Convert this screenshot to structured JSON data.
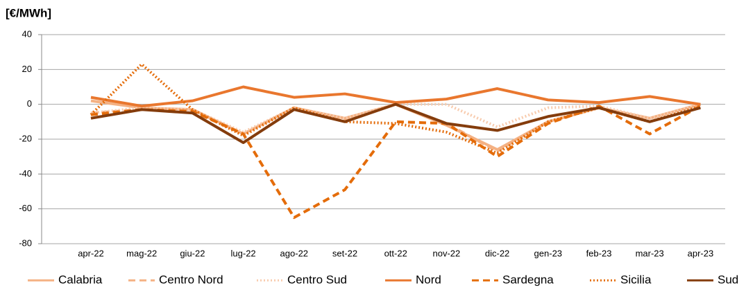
{
  "chart_data": {
    "type": "line",
    "title": "[€/MWh]",
    "categories": [
      "apr-22",
      "mag-22",
      "giu-22",
      "lug-22",
      "ago-22",
      "set-22",
      "ott-22",
      "nov-22",
      "dic-22",
      "gen-23",
      "feb-23",
      "mar-23",
      "apr-23"
    ],
    "ylim": [
      -80,
      40
    ],
    "yticks": [
      -80,
      -60,
      -40,
      -20,
      0,
      20,
      40
    ],
    "grid": true,
    "series": [
      {
        "name": "Calabria",
        "color": "#f4b183",
        "dash": "solid",
        "values": [
          2,
          -2,
          -3,
          -17,
          -2,
          -8,
          0,
          -12,
          -26,
          -10,
          -2,
          -8,
          0
        ]
      },
      {
        "name": "Centro Nord",
        "color": "#f4b183",
        "dash": "dashed",
        "values": [
          -5,
          -3,
          -3,
          -17,
          -2,
          -9,
          0,
          -11,
          -27,
          -10,
          -2,
          -8,
          0
        ]
      },
      {
        "name": "Centro Sud",
        "color": "#f8cbad",
        "dash": "dotted",
        "values": [
          -5,
          -2,
          -3,
          -16,
          -2,
          -8,
          0,
          0,
          -13,
          -2,
          -1,
          -8,
          0
        ]
      },
      {
        "name": "Nord",
        "color": "#e9772e",
        "dash": "solid",
        "values": [
          4,
          -1,
          2,
          10,
          4,
          6,
          1,
          3,
          9,
          2.5,
          1,
          4.5,
          0
        ]
      },
      {
        "name": "Sardegna",
        "color": "#e46c0a",
        "dash": "dashed",
        "values": [
          -6,
          -3,
          -4,
          -17,
          -65,
          -49,
          -10,
          -11,
          -30,
          -11,
          -1,
          -17,
          -1
        ]
      },
      {
        "name": "Sicilia",
        "color": "#e46c0a",
        "dash": "dotted",
        "values": [
          -6,
          23,
          -3,
          -18,
          -2,
          -10,
          -11,
          -16,
          -28,
          -10,
          -2,
          -10,
          -1
        ]
      },
      {
        "name": "Sud",
        "color": "#843c0c",
        "dash": "solid",
        "values": [
          -8,
          -3,
          -5,
          -22,
          -3,
          -10,
          0,
          -11,
          -15,
          -7,
          -2,
          -10,
          -2
        ]
      }
    ]
  }
}
